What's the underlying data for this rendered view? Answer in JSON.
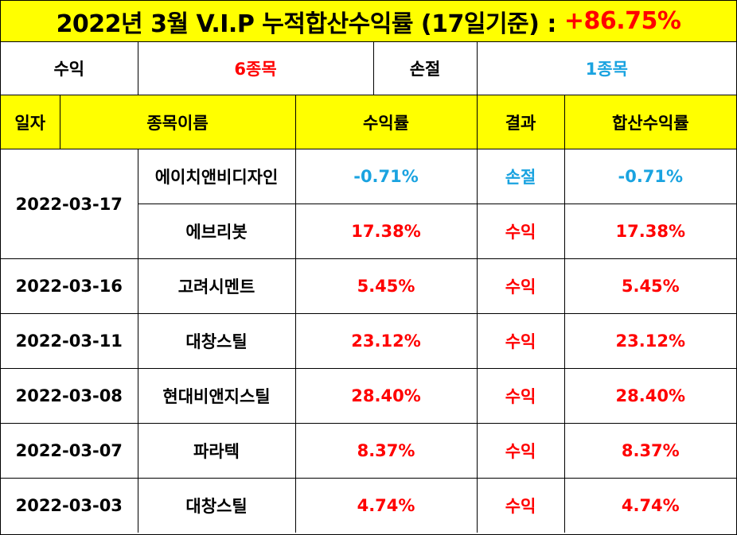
{
  "title": {
    "text": "2022년 3월 V.I.P 누적합산수익률 (17일기준) :",
    "value": "+86.75%"
  },
  "summary": {
    "profit_label": "수익",
    "profit_count": "6종목",
    "loss_label": "손절",
    "loss_count": "1종목"
  },
  "headers": {
    "date": "일자",
    "name": "종목이름",
    "rate": "수익률",
    "result": "결과",
    "cumulative": "합산수익률"
  },
  "colors": {
    "header_bg": "#ffff00",
    "profit": "#ff0000",
    "loss": "#1aa3e0"
  },
  "rows": [
    {
      "date": "2022-03-17",
      "name": "에이치앤비디자인",
      "rate": "-0.71%",
      "result": "손절",
      "cumulative": "-0.71%"
    },
    {
      "name": "에브리봇",
      "rate": "17.38%",
      "result": "수익",
      "cumulative": "17.38%"
    },
    {
      "date": "2022-03-16",
      "name": "고려시멘트",
      "rate": "5.45%",
      "result": "수익",
      "cumulative": "5.45%"
    },
    {
      "date": "2022-03-11",
      "name": "대창스틸",
      "rate": "23.12%",
      "result": "수익",
      "cumulative": "23.12%"
    },
    {
      "date": "2022-03-08",
      "name": "현대비앤지스틸",
      "rate": "28.40%",
      "result": "수익",
      "cumulative": "28.40%"
    },
    {
      "date": "2022-03-07",
      "name": "파라텍",
      "rate": "8.37%",
      "result": "수익",
      "cumulative": "8.37%"
    },
    {
      "date": "2022-03-03",
      "name": "대창스틸",
      "rate": "4.74%",
      "result": "수익",
      "cumulative": "4.74%"
    }
  ]
}
